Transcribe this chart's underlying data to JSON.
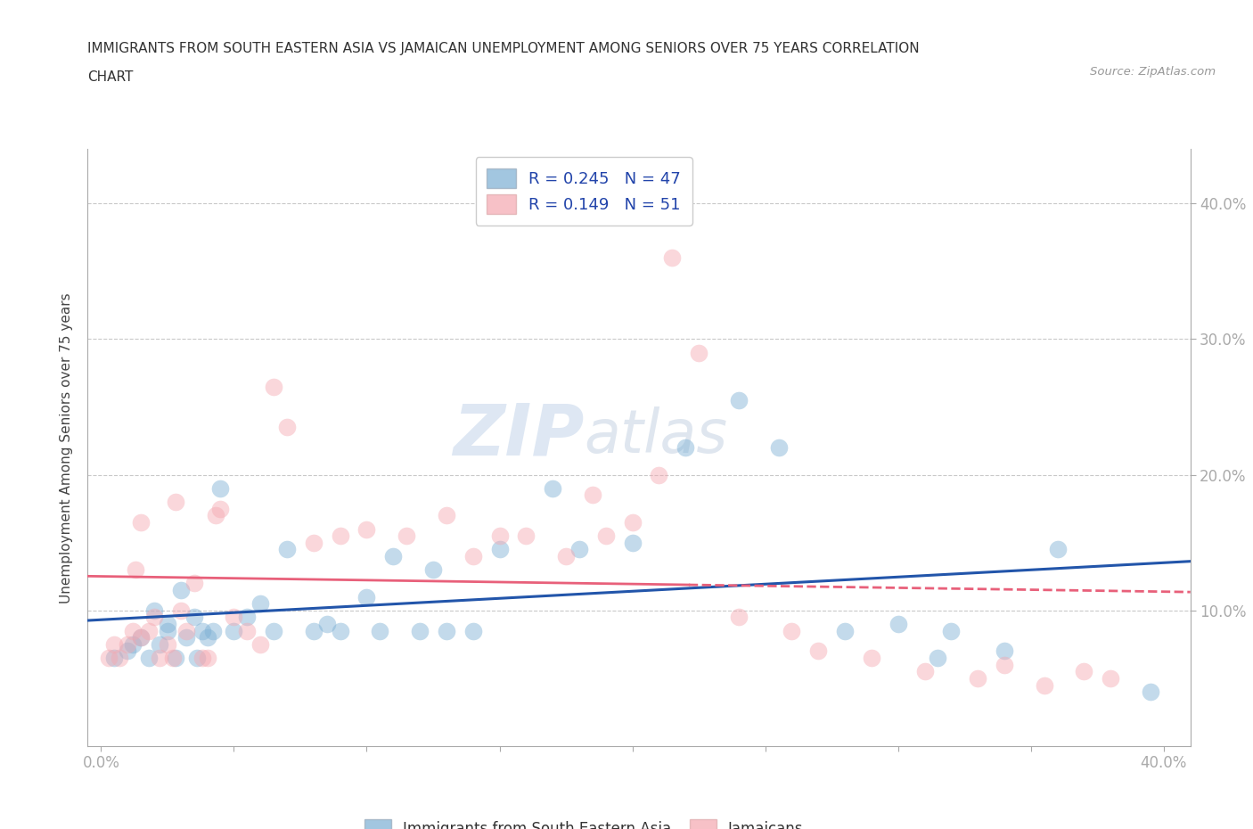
{
  "title_line1": "IMMIGRANTS FROM SOUTH EASTERN ASIA VS JAMAICAN UNEMPLOYMENT AMONG SENIORS OVER 75 YEARS CORRELATION",
  "title_line2": "CHART",
  "source": "Source: ZipAtlas.com",
  "ylabel": "Unemployment Among Seniors over 75 years",
  "y_ticks": [
    0.1,
    0.2,
    0.3,
    0.4
  ],
  "y_tick_labels": [
    "10.0%",
    "20.0%",
    "30.0%",
    "40.0%"
  ],
  "x_ticks": [
    0.0,
    0.05,
    0.1,
    0.15,
    0.2,
    0.25,
    0.3,
    0.35,
    0.4
  ],
  "x_tick_labels_bottom": [
    "0.0%",
    "",
    "",
    "",
    "",
    "",
    "",
    "",
    "40.0%"
  ],
  "blue_color": "#7BAFD4",
  "pink_color": "#F4A7B0",
  "line_blue_color": "#2255AA",
  "line_pink_color": "#E8607A",
  "blue_scatter_x": [
    0.005,
    0.01,
    0.012,
    0.015,
    0.018,
    0.02,
    0.022,
    0.025,
    0.025,
    0.028,
    0.03,
    0.032,
    0.035,
    0.036,
    0.038,
    0.04,
    0.042,
    0.045,
    0.05,
    0.055,
    0.06,
    0.065,
    0.07,
    0.08,
    0.085,
    0.09,
    0.1,
    0.105,
    0.11,
    0.12,
    0.125,
    0.13,
    0.14,
    0.15,
    0.17,
    0.18,
    0.2,
    0.22,
    0.24,
    0.255,
    0.28,
    0.3,
    0.315,
    0.32,
    0.34,
    0.36,
    0.395
  ],
  "blue_scatter_y": [
    0.065,
    0.07,
    0.075,
    0.08,
    0.065,
    0.1,
    0.075,
    0.085,
    0.09,
    0.065,
    0.115,
    0.08,
    0.095,
    0.065,
    0.085,
    0.08,
    0.085,
    0.19,
    0.085,
    0.095,
    0.105,
    0.085,
    0.145,
    0.085,
    0.09,
    0.085,
    0.11,
    0.085,
    0.14,
    0.085,
    0.13,
    0.085,
    0.085,
    0.145,
    0.19,
    0.145,
    0.15,
    0.22,
    0.255,
    0.22,
    0.085,
    0.09,
    0.065,
    0.085,
    0.07,
    0.145,
    0.04
  ],
  "pink_scatter_x": [
    0.003,
    0.005,
    0.007,
    0.01,
    0.012,
    0.013,
    0.015,
    0.015,
    0.018,
    0.02,
    0.022,
    0.025,
    0.027,
    0.028,
    0.03,
    0.032,
    0.035,
    0.038,
    0.04,
    0.043,
    0.045,
    0.05,
    0.055,
    0.06,
    0.065,
    0.07,
    0.08,
    0.09,
    0.1,
    0.115,
    0.13,
    0.14,
    0.15,
    0.16,
    0.175,
    0.185,
    0.19,
    0.2,
    0.21,
    0.215,
    0.225,
    0.24,
    0.26,
    0.27,
    0.29,
    0.31,
    0.33,
    0.34,
    0.355,
    0.37,
    0.38
  ],
  "pink_scatter_y": [
    0.065,
    0.075,
    0.065,
    0.075,
    0.085,
    0.13,
    0.08,
    0.165,
    0.085,
    0.095,
    0.065,
    0.075,
    0.065,
    0.18,
    0.1,
    0.085,
    0.12,
    0.065,
    0.065,
    0.17,
    0.175,
    0.095,
    0.085,
    0.075,
    0.265,
    0.235,
    0.15,
    0.155,
    0.16,
    0.155,
    0.17,
    0.14,
    0.155,
    0.155,
    0.14,
    0.185,
    0.155,
    0.165,
    0.2,
    0.36,
    0.29,
    0.095,
    0.085,
    0.07,
    0.065,
    0.055,
    0.05,
    0.06,
    0.045,
    0.055,
    0.05
  ],
  "xlim": [
    -0.005,
    0.41
  ],
  "ylim": [
    0.0,
    0.44
  ],
  "legend_R1": "0.245",
  "legend_N1": "47",
  "legend_R2": "0.149",
  "legend_N2": "51"
}
